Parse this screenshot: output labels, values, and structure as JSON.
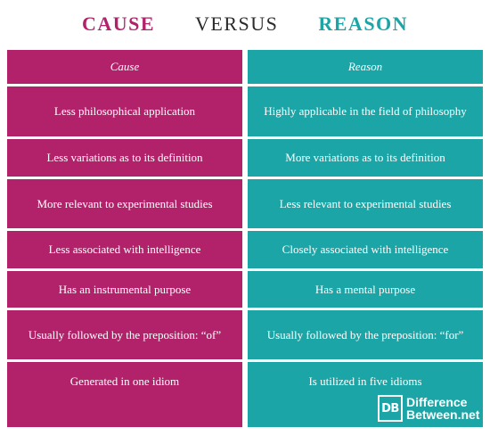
{
  "title": {
    "left": "CAUSE",
    "middle": "VERSUS",
    "right": "REASON"
  },
  "colors": {
    "cause": "#b2226b",
    "reason": "#1ba5a6",
    "versus": "#2b2b2b"
  },
  "header": {
    "left": "Cause",
    "right": "Reason"
  },
  "rows": [
    {
      "left": "Less philosophical application",
      "right": "Highly applicable in the field of philosophy"
    },
    {
      "left": "Less variations as to its definition",
      "right": "More variations as to its definition"
    },
    {
      "left": "More relevant to experimental studies",
      "right": "Less relevant to experimental studies"
    },
    {
      "left": "Less associated with intelligence",
      "right": "Closely associated with intelligence"
    },
    {
      "left": "Has an instrumental purpose",
      "right": "Has a mental purpose"
    },
    {
      "left": "Usually followed by the preposition: “of”",
      "right": "Usually followed by the preposition: “for”"
    },
    {
      "left": "Generated in one idiom",
      "right": "Is utilized in five idioms"
    }
  ],
  "logo": {
    "mark": "DB",
    "line1": "Difference",
    "line2": "Between.net"
  }
}
